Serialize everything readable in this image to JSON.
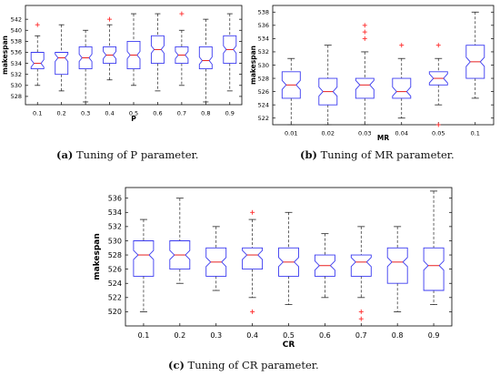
{
  "colors": {
    "box": "#3a3af0",
    "median": "#e82020",
    "outlier": "#ff2a2a",
    "whisker": "#222222",
    "axis": "#000000"
  },
  "captions": [
    {
      "letter": "(a)",
      "text": " Tuning of P parameter."
    },
    {
      "letter": "(b)",
      "text": " Tuning of MR parameter."
    },
    {
      "letter": "(c)",
      "text": " Tuning of CR parameter."
    }
  ],
  "chart_data": [
    {
      "type": "box",
      "xlabel": "P",
      "ylabel": "makespan",
      "ylim": [
        526.5,
        544.5
      ],
      "yticks": [
        528,
        530,
        532,
        534,
        536,
        538,
        540,
        542
      ],
      "categories": [
        "0.1",
        "0.2",
        "0.3",
        "0.4",
        "0.5",
        "0.6",
        "0.7",
        "0.8",
        "0.9"
      ],
      "boxes": [
        {
          "whislo": 530,
          "q1": 533,
          "med": 534,
          "q3": 536,
          "whishi": 539,
          "fliers": [
            541
          ]
        },
        {
          "whislo": 529,
          "q1": 532,
          "med": 535,
          "q3": 536,
          "whishi": 541,
          "fliers": []
        },
        {
          "whislo": 527,
          "q1": 533,
          "med": 535,
          "q3": 537,
          "whishi": 540,
          "fliers": []
        },
        {
          "whislo": 531,
          "q1": 534,
          "med": 535.5,
          "q3": 537,
          "whishi": 541,
          "fliers": [
            542
          ]
        },
        {
          "whislo": 530,
          "q1": 533,
          "med": 535.5,
          "q3": 538,
          "whishi": 543,
          "fliers": []
        },
        {
          "whislo": 529,
          "q1": 534,
          "med": 536.5,
          "q3": 539,
          "whishi": 543,
          "fliers": []
        },
        {
          "whislo": 530,
          "q1": 534,
          "med": 535.5,
          "q3": 537,
          "whishi": 540,
          "fliers": [
            543
          ]
        },
        {
          "whislo": 527,
          "q1": 533,
          "med": 534.5,
          "q3": 537,
          "whishi": 542,
          "fliers": []
        },
        {
          "whislo": 529,
          "q1": 534,
          "med": 536.5,
          "q3": 539,
          "whishi": 543,
          "fliers": []
        }
      ]
    },
    {
      "type": "box",
      "xlabel": "MR",
      "ylabel": "makespan",
      "ylim": [
        521,
        539
      ],
      "yticks": [
        522,
        524,
        526,
        528,
        530,
        532,
        534,
        536,
        538
      ],
      "categories": [
        "0.01",
        "0.02",
        "0.03",
        "0.04",
        "0.05",
        "0.1"
      ],
      "boxes": [
        {
          "whislo": 521,
          "q1": 525,
          "med": 527,
          "q3": 529,
          "whishi": 531,
          "fliers": []
        },
        {
          "whislo": 521,
          "q1": 524,
          "med": 526,
          "q3": 528,
          "whishi": 533,
          "fliers": []
        },
        {
          "whislo": 521,
          "q1": 525,
          "med": 527,
          "q3": 528,
          "whishi": 532,
          "fliers": [
            534,
            535,
            536
          ]
        },
        {
          "whislo": 522,
          "q1": 525,
          "med": 526,
          "q3": 528,
          "whishi": 531,
          "fliers": [
            533
          ]
        },
        {
          "whislo": 524,
          "q1": 527,
          "med": 528,
          "q3": 529,
          "whishi": 531,
          "fliers": [
            521,
            533
          ]
        },
        {
          "whislo": 525,
          "q1": 528,
          "med": 530.5,
          "q3": 533,
          "whishi": 538,
          "fliers": []
        }
      ]
    },
    {
      "type": "box",
      "xlabel": "CR",
      "ylabel": "makespan",
      "ylim": [
        518,
        537.5
      ],
      "yticks": [
        520,
        522,
        524,
        526,
        528,
        530,
        532,
        534,
        536
      ],
      "categories": [
        "0.1",
        "0.2",
        "0.3",
        "0.4",
        "0.5",
        "0.6",
        "0.7",
        "0.8",
        "0.9"
      ],
      "boxes": [
        {
          "whislo": 520,
          "q1": 525,
          "med": 528,
          "q3": 530,
          "whishi": 533,
          "fliers": []
        },
        {
          "whislo": 524,
          "q1": 526,
          "med": 528,
          "q3": 530,
          "whishi": 536,
          "fliers": []
        },
        {
          "whislo": 523,
          "q1": 525,
          "med": 527,
          "q3": 529,
          "whishi": 532,
          "fliers": []
        },
        {
          "whislo": 522,
          "q1": 526,
          "med": 528,
          "q3": 529,
          "whishi": 533,
          "fliers": [
            534,
            520
          ]
        },
        {
          "whislo": 521,
          "q1": 525,
          "med": 527,
          "q3": 529,
          "whishi": 534,
          "fliers": []
        },
        {
          "whislo": 522,
          "q1": 525,
          "med": 526.5,
          "q3": 528,
          "whishi": 531,
          "fliers": []
        },
        {
          "whislo": 522,
          "q1": 525,
          "med": 527,
          "q3": 528,
          "whishi": 532,
          "fliers": [
            520,
            519
          ]
        },
        {
          "whislo": 520,
          "q1": 524,
          "med": 527,
          "q3": 529,
          "whishi": 532,
          "fliers": []
        },
        {
          "whislo": 521,
          "q1": 523,
          "med": 526.5,
          "q3": 529,
          "whishi": 537,
          "fliers": []
        }
      ]
    }
  ]
}
